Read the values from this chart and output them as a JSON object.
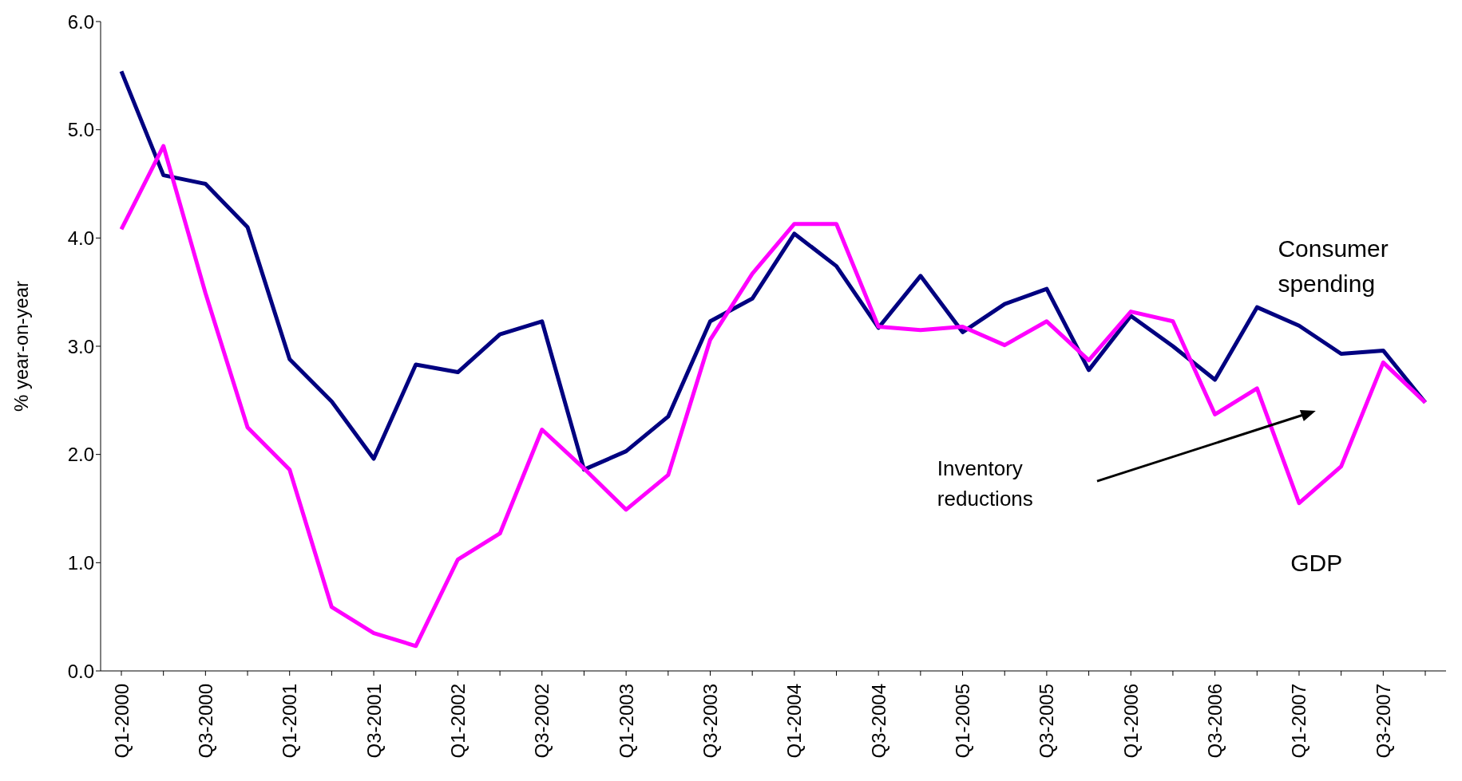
{
  "chart_data": {
    "type": "line",
    "ylabel": "% year-on-year",
    "categories": [
      "Q1-2000",
      null,
      "Q3-2000",
      null,
      "Q1-2001",
      null,
      "Q3-2001",
      null,
      "Q1-2002",
      null,
      "Q3-2002",
      null,
      "Q1-2003",
      null,
      "Q3-2003",
      null,
      "Q1-2004",
      null,
      "Q3-2004",
      null,
      "Q1-2005",
      null,
      "Q3-2005",
      null,
      "Q1-2006",
      null,
      "Q3-2006",
      null,
      "Q1-2007",
      null,
      "Q3-2007",
      null
    ],
    "series": [
      {
        "name": "Consumer spending",
        "color": "#000080",
        "values": [
          5.54,
          4.58,
          4.5,
          4.1,
          2.88,
          2.49,
          1.96,
          2.83,
          2.76,
          3.11,
          3.23,
          1.86,
          2.03,
          2.35,
          3.23,
          3.44,
          4.04,
          3.74,
          3.17,
          3.65,
          3.13,
          3.39,
          3.53,
          2.78,
          3.28,
          3.0,
          2.69,
          3.36,
          3.19,
          2.93,
          2.96,
          2.48
        ]
      },
      {
        "name": "GDP",
        "color": "#ff00ff",
        "values": [
          4.08,
          4.85,
          3.49,
          2.25,
          1.86,
          0.59,
          0.35,
          0.23,
          1.03,
          1.27,
          2.23,
          1.87,
          1.49,
          1.81,
          3.06,
          3.67,
          4.13,
          4.13,
          3.18,
          3.15,
          3.18,
          3.01,
          3.23,
          2.87,
          3.32,
          3.23,
          2.37,
          2.61,
          1.55,
          1.89,
          2.85,
          2.48
        ]
      }
    ],
    "ylim": [
      0,
      6
    ],
    "yticks": [
      {
        "value": 0,
        "label": "0.0"
      },
      {
        "value": 1,
        "label": "1.0"
      },
      {
        "value": 2,
        "label": "2.0"
      },
      {
        "value": 3,
        "label": "3.0"
      },
      {
        "value": 4,
        "label": "4.0"
      },
      {
        "value": 5,
        "label": "5.0"
      },
      {
        "value": 6,
        "label": "6.0"
      }
    ],
    "annotations": [
      "Inventory reductions"
    ],
    "grid": false,
    "marker": "none",
    "line_style": "solid"
  }
}
